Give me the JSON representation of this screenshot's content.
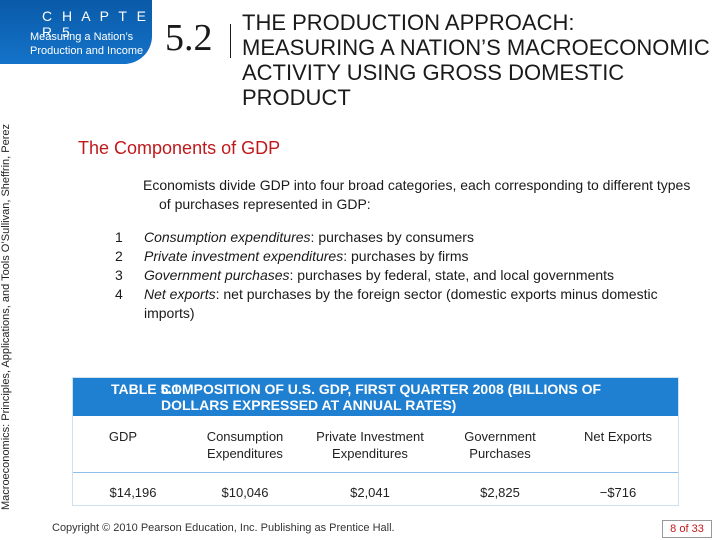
{
  "header": {
    "chapter_label": "C H A P T E R  5",
    "chapter_subtitle": "Measuring a Nation’s Production and Income",
    "section_number": "5.2",
    "section_title": "THE PRODUCTION APPROACH: MEASURING A NATION’S MACROECONOMIC ACTIVITY USING GROSS DOMESTIC PRODUCT",
    "side_text": "Macroeconomics: Principles, Applications, and Tools    O’Sullivan, Sheffrin, Perez"
  },
  "content": {
    "subheading": "The Components of GDP",
    "intro": "Economists divide GDP into four broad categories, each corresponding to different types of purchases represented in GDP:",
    "items": [
      {
        "num": "1",
        "term": "Consumption expenditures",
        "rest": ": purchases by consumers"
      },
      {
        "num": "2",
        "term": "Private investment expenditures",
        "rest": ": purchases by firms"
      },
      {
        "num": "3",
        "term": "Government purchases",
        "rest": ": purchases by federal, state, and local governments"
      },
      {
        "num": "4",
        "term": "Net exports",
        "rest": ": net purchases by the foreign sector (domestic exports minus domestic imports)"
      }
    ]
  },
  "table": {
    "id": "TABLE 5.1",
    "caption": "COMPOSITION OF U.S. GDP, FIRST QUARTER 2008 (BILLIONS OF DOLLARS EXPRESSED AT ANNUAL RATES)",
    "columns": [
      "GDP",
      "Consumption Expenditures",
      "Private Investment Expenditures",
      "Government Purchases",
      "Net Exports"
    ],
    "values": [
      "$14,196",
      "$10,046",
      "$2,041",
      "$2,825",
      "−$716"
    ]
  },
  "footer": {
    "copyright": "Copyright © 2010  Pearson Education, Inc. Publishing as Prentice Hall.",
    "page": "8 of 33"
  },
  "colors": {
    "chapter_blue": "#1473c9",
    "table_header_blue": "#1f7fd0",
    "subhead_red": "#c0191c"
  }
}
